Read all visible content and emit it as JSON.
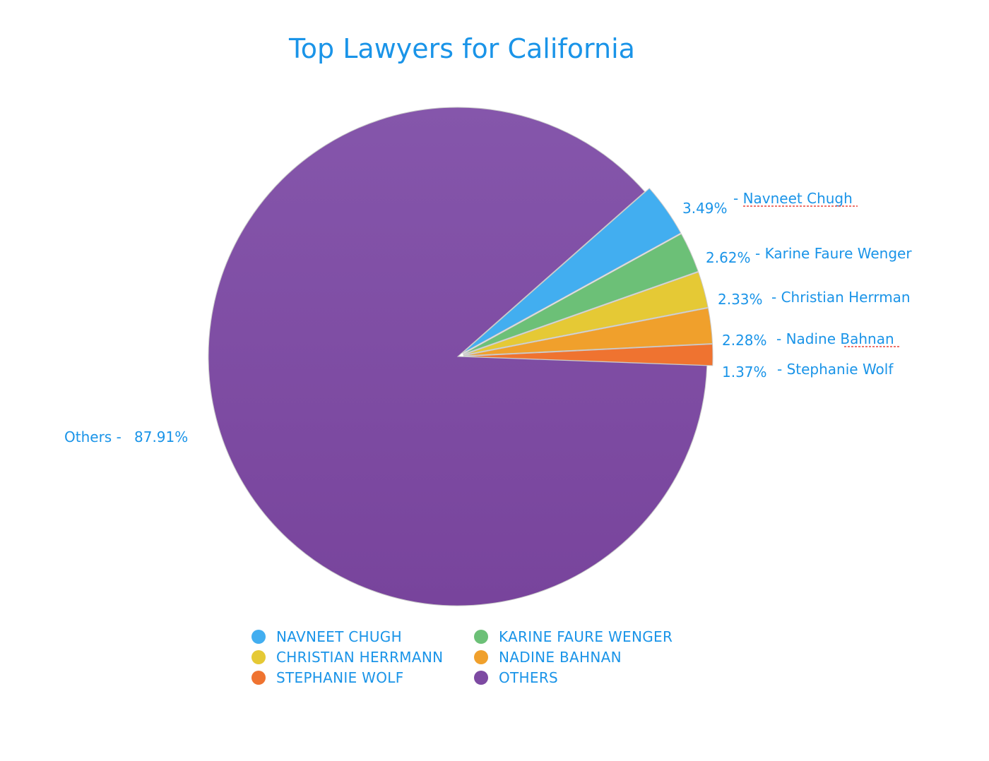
{
  "chart_data": {
    "type": "pie",
    "title": "Top Lawyers for California",
    "slices": [
      {
        "label": "Navneet Chugh",
        "legend": "NAVNEET CHUGH",
        "value": 3.49,
        "value_label": "3.49%",
        "color": "#42aef0",
        "exploded": true
      },
      {
        "label": "Karine Faure Wenger",
        "legend": "KARINE FAURE WENGER",
        "value": 2.62,
        "value_label": "2.62%",
        "color": "#6cc077",
        "exploded": true
      },
      {
        "label": "Christian Herrman",
        "legend": "CHRISTIAN HERRMANN",
        "value": 2.33,
        "value_label": "2.33%",
        "color": "#e5c935",
        "exploded": true
      },
      {
        "label": "Nadine Bahnan",
        "legend": "NADINE BAHNAN",
        "value": 2.28,
        "value_label": "2.28%",
        "color": "#f0a02c",
        "exploded": true
      },
      {
        "label": "Stephanie Wolf",
        "legend": "STEPHANIE WOLF",
        "value": 1.37,
        "value_label": "1.37%",
        "color": "#ef7330",
        "exploded": true
      },
      {
        "label": "Others",
        "legend": "OTHERS",
        "value": 87.91,
        "value_label": "87.91%",
        "color": "#7d4aa2",
        "exploded": false
      }
    ],
    "legend_position": "bottom"
  }
}
